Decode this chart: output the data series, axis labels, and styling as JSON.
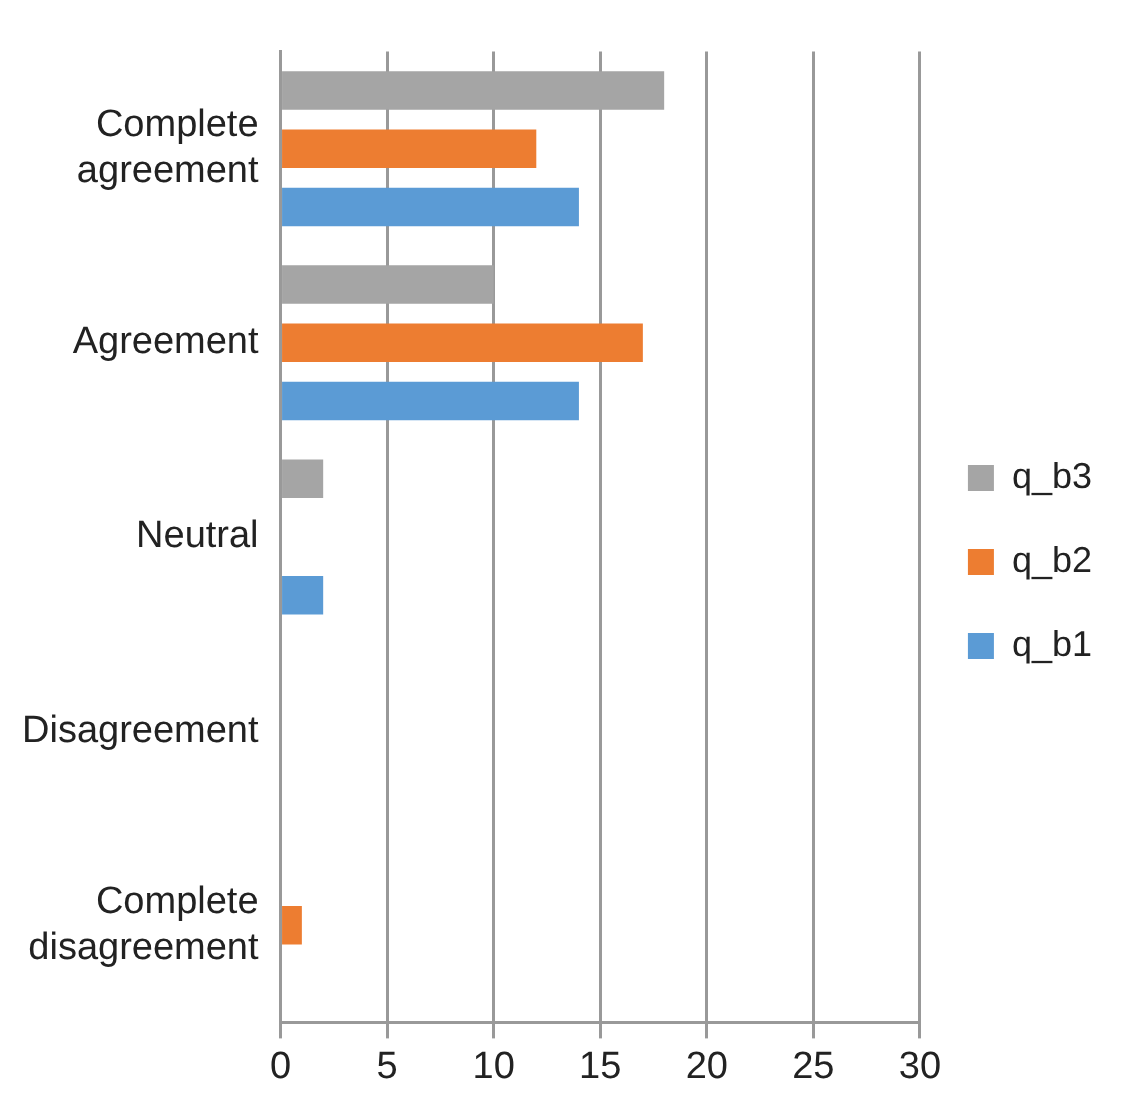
{
  "chart_data": {
    "type": "bar",
    "orientation": "horizontal",
    "categories": [
      "Complete agreement",
      "Agreement",
      "Neutral",
      "Disagreement",
      "Complete disagreement"
    ],
    "series": [
      {
        "name": "q_b3",
        "color": "#a5a5a5",
        "values": [
          18,
          10,
          2,
          0,
          0
        ]
      },
      {
        "name": "q_b2",
        "color": "#ed7d31",
        "values": [
          12,
          17,
          0,
          0,
          1
        ]
      },
      {
        "name": "q_b1",
        "color": "#5b9bd5",
        "values": [
          14,
          14,
          2,
          0,
          0
        ]
      }
    ],
    "xlim": [
      0,
      30
    ],
    "xticks": [
      0,
      5,
      10,
      15,
      20,
      25,
      30
    ],
    "grid": "x",
    "legend": "right"
  }
}
